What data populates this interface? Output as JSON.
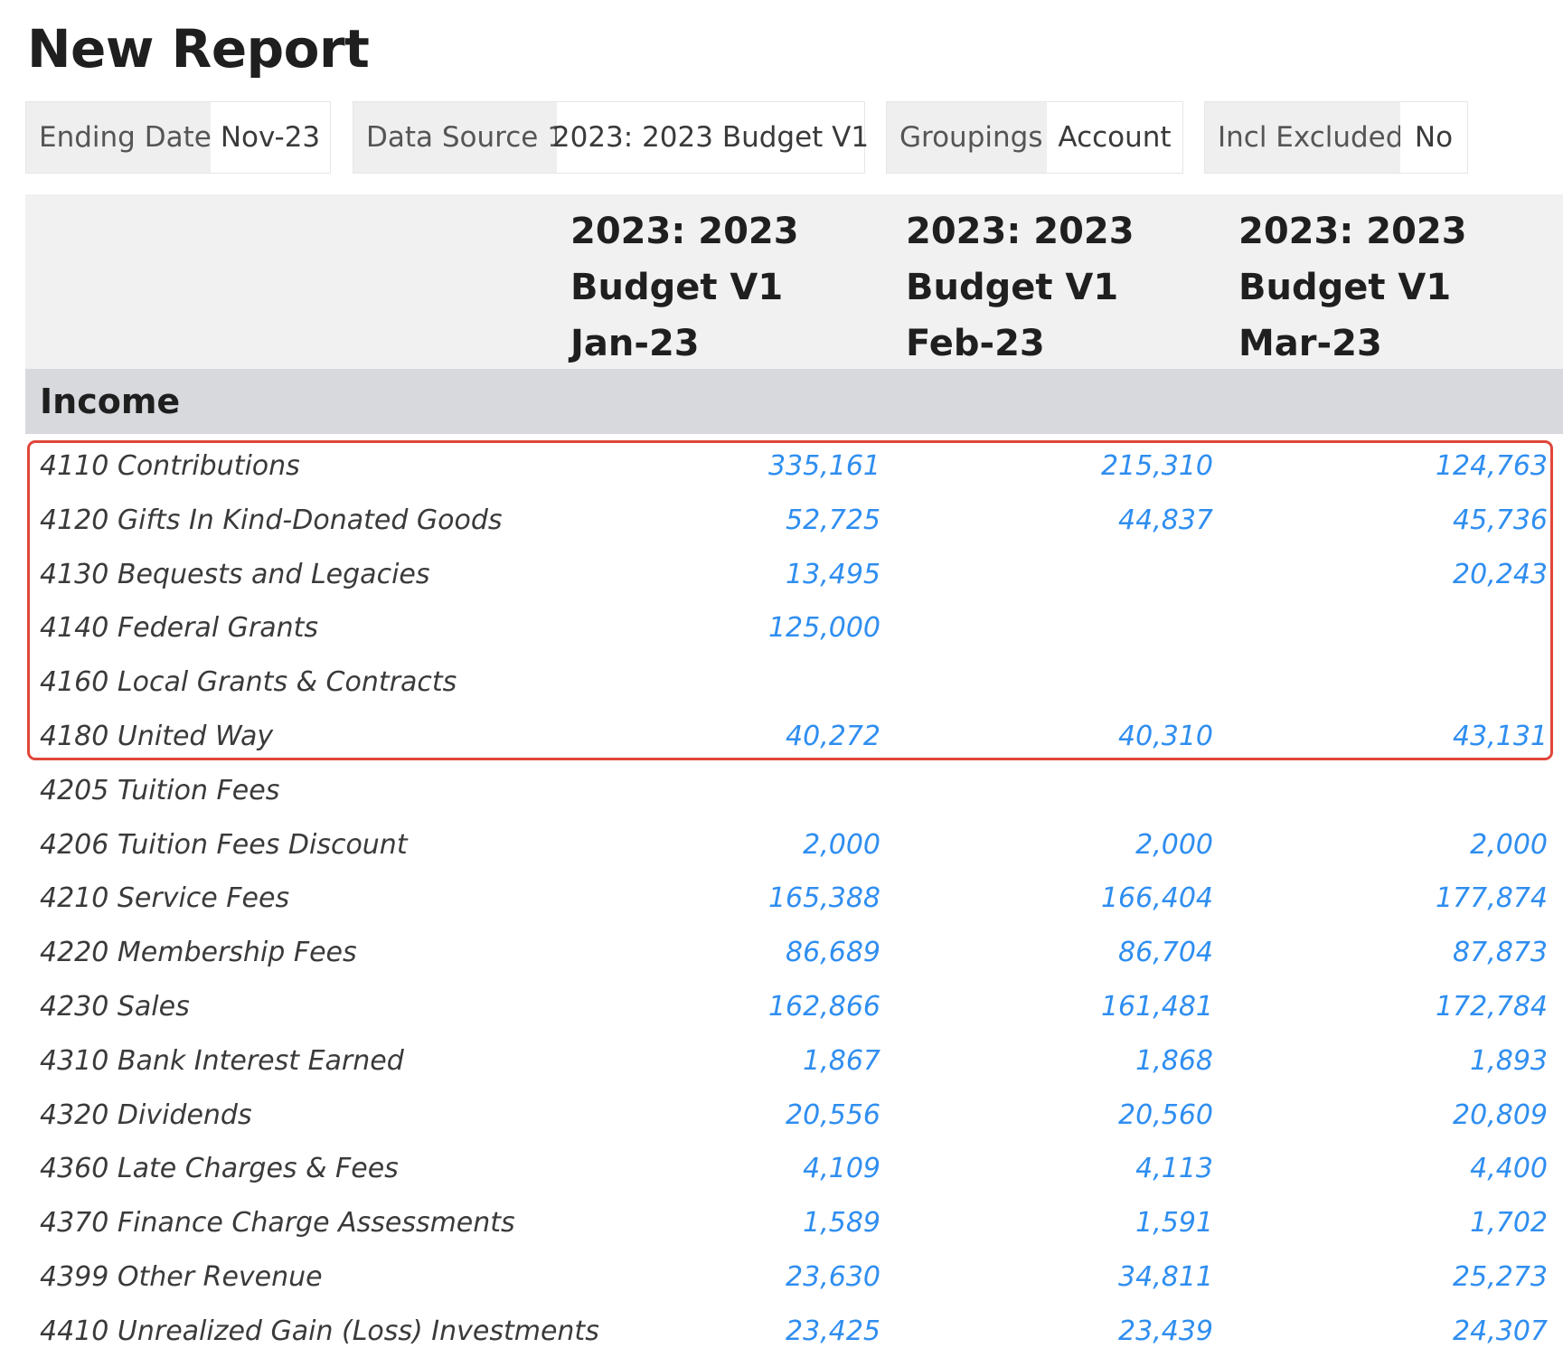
{
  "title": "New Report",
  "filters": {
    "ending_date": {
      "label": "Ending Date",
      "value": "Nov-23"
    },
    "data_source": {
      "label": "Data Source 1",
      "value": "2023: 2023 Budget V1"
    },
    "groupings": {
      "label": "Groupings",
      "value": "Account"
    },
    "incl_excluded": {
      "label": "Incl Excluded",
      "value": "No"
    }
  },
  "columns": [
    {
      "line1": "2023: 2023",
      "line2": "Budget V1",
      "line3": "Jan-23"
    },
    {
      "line1": "2023: 2023",
      "line2": "Budget V1",
      "line3": "Feb-23"
    },
    {
      "line1": "2023: 2023",
      "line2": "Budget V1",
      "line3": "Mar-23"
    }
  ],
  "section": {
    "label": "Income"
  },
  "rows": [
    {
      "account": "4110 Contributions",
      "jan": "335,161",
      "feb": "215,310",
      "mar": "124,763"
    },
    {
      "account": "4120 Gifts In Kind-Donated Goods",
      "jan": "52,725",
      "feb": "44,837",
      "mar": "45,736"
    },
    {
      "account": "4130 Bequests and Legacies",
      "jan": "13,495",
      "feb": "",
      "mar": "20,243"
    },
    {
      "account": "4140 Federal Grants",
      "jan": "125,000",
      "feb": "",
      "mar": ""
    },
    {
      "account": "4160 Local Grants & Contracts",
      "jan": "",
      "feb": "",
      "mar": ""
    },
    {
      "account": "4180 United Way",
      "jan": "40,272",
      "feb": "40,310",
      "mar": "43,131"
    },
    {
      "account": "4205 Tuition Fees",
      "jan": "",
      "feb": "",
      "mar": ""
    },
    {
      "account": "4206 Tuition Fees Discount",
      "jan": "2,000",
      "feb": "2,000",
      "mar": "2,000"
    },
    {
      "account": "4210 Service Fees",
      "jan": "165,388",
      "feb": "166,404",
      "mar": "177,874"
    },
    {
      "account": "4220 Membership Fees",
      "jan": "86,689",
      "feb": "86,704",
      "mar": "87,873"
    },
    {
      "account": "4230 Sales",
      "jan": "162,866",
      "feb": "161,481",
      "mar": "172,784"
    },
    {
      "account": "4310 Bank Interest Earned",
      "jan": "1,867",
      "feb": "1,868",
      "mar": "1,893"
    },
    {
      "account": "4320 Dividends",
      "jan": "20,556",
      "feb": "20,560",
      "mar": "20,809"
    },
    {
      "account": "4360 Late Charges & Fees",
      "jan": "4,109",
      "feb": "4,113",
      "mar": "4,400"
    },
    {
      "account": "4370 Finance Charge Assessments",
      "jan": "1,589",
      "feb": "1,591",
      "mar": "1,702"
    },
    {
      "account": "4399 Other Revenue",
      "jan": "23,630",
      "feb": "34,811",
      "mar": "25,273"
    },
    {
      "account": "4410 Unrealized Gain (Loss) Investments",
      "jan": "23,425",
      "feb": "23,439",
      "mar": "24,307"
    }
  ]
}
